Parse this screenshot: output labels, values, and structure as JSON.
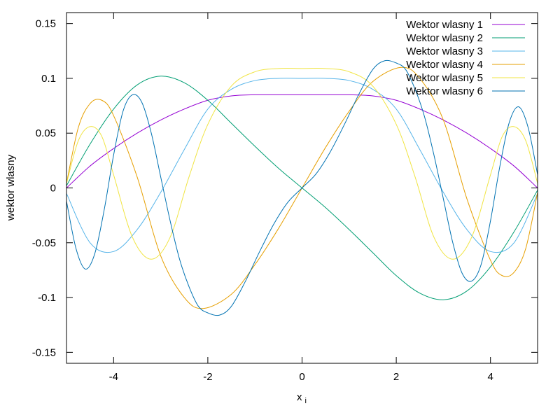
{
  "chart_data": {
    "type": "line",
    "title": "",
    "xlabel": "x",
    "xlabel_subscript": "i",
    "ylabel": "wektor wlasny",
    "xlim": [
      -5,
      5
    ],
    "ylim": [
      -0.16,
      0.16
    ],
    "xticks": [
      -4,
      -2,
      0,
      2,
      4
    ],
    "yticks": [
      -0.15,
      -0.1,
      -0.05,
      0,
      0.05,
      0.1,
      0.15
    ],
    "xtick_labels": [
      "-4",
      "-2",
      "0",
      "2",
      "4"
    ],
    "ytick_labels": [
      "-0.15",
      "-0.1",
      "-0.05",
      "0",
      "0.05",
      "0.1",
      "0.15"
    ],
    "grid": false,
    "legend_position": "top-right",
    "series": [
      {
        "name": "Wektor wlasny 1",
        "color": "#9400d3",
        "x": [
          -5,
          -4.5,
          -4,
          -3.5,
          -3,
          -2.5,
          -2,
          -1.5,
          -1,
          -0.5,
          0,
          0.5,
          1,
          1.5,
          2,
          2.5,
          3,
          3.5,
          4,
          4.5,
          5
        ],
        "y": [
          0.0,
          0.02,
          0.036,
          0.05,
          0.062,
          0.072,
          0.08,
          0.084,
          0.085,
          0.085,
          0.085,
          0.085,
          0.085,
          0.084,
          0.08,
          0.072,
          0.062,
          0.05,
          0.036,
          0.02,
          0.0
        ]
      },
      {
        "name": "Wektor wlasny 2",
        "color": "#009e73",
        "x": [
          -5,
          -4.5,
          -4,
          -3.5,
          -3,
          -2.5,
          -2,
          -1.5,
          -1,
          -0.5,
          0,
          0.5,
          1,
          1.5,
          2,
          2.5,
          3,
          3.5,
          4,
          4.5,
          5
        ],
        "y": [
          0.002,
          0.04,
          0.072,
          0.094,
          0.102,
          0.096,
          0.08,
          0.059,
          0.038,
          0.018,
          0.0,
          -0.018,
          -0.038,
          -0.059,
          -0.08,
          -0.096,
          -0.102,
          -0.094,
          -0.072,
          -0.04,
          -0.002
        ]
      },
      {
        "name": "Wektor wlasny 3",
        "color": "#56b4e9",
        "x": [
          -5,
          -4.5,
          -4,
          -3.5,
          -3,
          -2.5,
          -2,
          -1.5,
          -1,
          -0.5,
          0,
          0.5,
          1,
          1.5,
          2,
          2.5,
          3,
          3.5,
          4,
          4.5,
          5
        ],
        "y": [
          -0.005,
          -0.05,
          -0.058,
          -0.038,
          -0.004,
          0.035,
          0.072,
          0.09,
          0.098,
          0.1,
          0.1,
          0.1,
          0.098,
          0.09,
          0.072,
          0.035,
          -0.004,
          -0.038,
          -0.058,
          -0.05,
          -0.005
        ]
      },
      {
        "name": "Wektor wlasny 4",
        "color": "#e69f00",
        "x": [
          -5,
          -4.75,
          -4.5,
          -4.25,
          -4,
          -3.5,
          -3,
          -2.5,
          -2.1,
          -1.5,
          -1,
          -0.5,
          0,
          0.5,
          1,
          1.5,
          2.1,
          2.5,
          3,
          3.5,
          4,
          4.25,
          4.5,
          4.75,
          5
        ],
        "y": [
          0.004,
          0.055,
          0.077,
          0.08,
          0.066,
          0.01,
          -0.062,
          -0.1,
          -0.11,
          -0.097,
          -0.07,
          -0.037,
          0.0,
          0.037,
          0.07,
          0.097,
          0.11,
          0.1,
          0.062,
          -0.01,
          -0.066,
          -0.08,
          -0.077,
          -0.055,
          -0.004
        ]
      },
      {
        "name": "Wektor wlasny 5",
        "color": "#f0e442",
        "x": [
          -5,
          -4.75,
          -4.5,
          -4.25,
          -4,
          -3.6,
          -3.2,
          -2.8,
          -2.4,
          -2,
          -1.5,
          -1,
          -0.5,
          0,
          0.5,
          1,
          1.5,
          2,
          2.4,
          2.8,
          3.2,
          3.6,
          4,
          4.25,
          4.5,
          4.75,
          5
        ],
        "y": [
          0.004,
          0.043,
          0.056,
          0.047,
          0.012,
          -0.045,
          -0.065,
          -0.045,
          0.01,
          0.058,
          0.093,
          0.106,
          0.109,
          0.109,
          0.109,
          0.106,
          0.093,
          0.058,
          0.01,
          -0.045,
          -0.065,
          -0.045,
          0.012,
          0.047,
          0.056,
          0.043,
          0.004
        ]
      },
      {
        "name": "Wektor wlasny 6",
        "color": "#0072b2",
        "x": [
          -5,
          -4.8,
          -4.6,
          -4.4,
          -4.2,
          -4.0,
          -3.8,
          -3.6,
          -3.4,
          -3.2,
          -3.0,
          -2.8,
          -2.6,
          -2.4,
          -2.2,
          -2.0,
          -1.75,
          -1.5,
          -1.2,
          -0.9,
          -0.6,
          -0.3,
          0,
          0.3,
          0.6,
          0.9,
          1.2,
          1.5,
          1.75,
          2.0,
          2.2,
          2.4,
          2.6,
          2.8,
          3.0,
          3.2,
          3.4,
          3.6,
          3.8,
          4.0,
          4.2,
          4.4,
          4.6,
          4.8,
          5
        ],
        "y": [
          -0.012,
          -0.055,
          -0.074,
          -0.06,
          -0.02,
          0.03,
          0.07,
          0.085,
          0.078,
          0.05,
          0.01,
          -0.03,
          -0.065,
          -0.09,
          -0.108,
          -0.114,
          -0.116,
          -0.108,
          -0.085,
          -0.058,
          -0.033,
          -0.013,
          0.0,
          0.013,
          0.033,
          0.058,
          0.085,
          0.108,
          0.116,
          0.114,
          0.108,
          0.09,
          0.065,
          0.03,
          -0.01,
          -0.05,
          -0.078,
          -0.085,
          -0.07,
          -0.03,
          0.02,
          0.06,
          0.074,
          0.055,
          0.012
        ]
      }
    ]
  }
}
